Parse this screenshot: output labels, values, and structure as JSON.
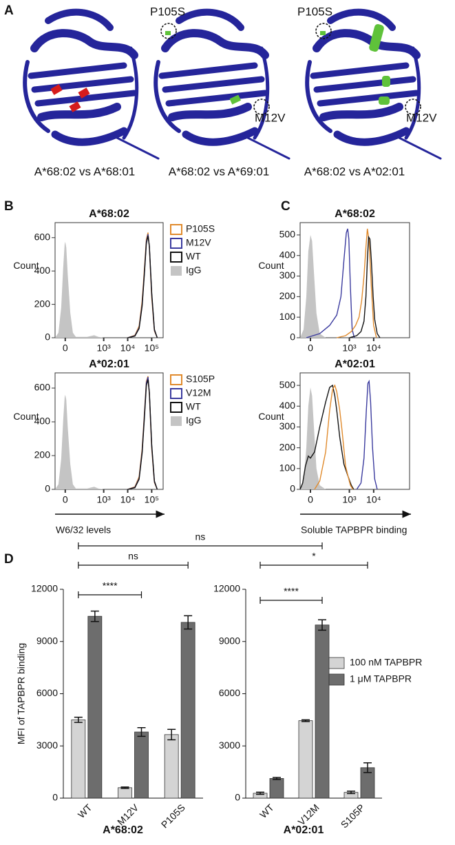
{
  "panel_labels": [
    "A",
    "B",
    "C",
    "D"
  ],
  "structures": {
    "captions": [
      "A*68:02 vs A*68:01",
      "A*68:02 vs A*69:01",
      "A*68:02 vs A*02:01"
    ],
    "mutation_labels": [
      "P105S",
      "M12V",
      "P105S",
      "M12V"
    ]
  },
  "comparison_label": "ns",
  "chart_data": [
    {
      "type": "histogram_overlay",
      "title": "A*68:02",
      "ylabel": "Count",
      "xscale": "biexponential",
      "linear_width": 50,
      "xlim": [
        -57,
        300000
      ],
      "ylim": [
        0,
        690
      ],
      "xticks": [
        0,
        {
          "value": 1000,
          "label": "10³"
        },
        {
          "value": 10000,
          "label": "10⁴"
        },
        {
          "value": 100000,
          "label": "10⁵"
        }
      ],
      "yticks": [
        0,
        200,
        400,
        600
      ],
      "series": [
        {
          "name": "P105S",
          "color": "#e08a2c",
          "x": [
            10000,
            20000,
            30000,
            40000,
            50000,
            60000,
            70000,
            80000,
            100000,
            130000,
            170000
          ],
          "values": [
            0,
            15,
            70,
            220,
            420,
            590,
            630,
            540,
            240,
            40,
            0
          ]
        },
        {
          "name": "M12V",
          "color": "#3a3a9e",
          "x": [
            10000,
            20000,
            30000,
            40000,
            50000,
            60000,
            70000,
            80000,
            100000,
            130000,
            170000
          ],
          "values": [
            0,
            12,
            60,
            200,
            400,
            575,
            620,
            545,
            260,
            45,
            0
          ]
        },
        {
          "name": "WT",
          "color": "#111111",
          "x": [
            10000,
            20000,
            30000,
            40000,
            50000,
            60000,
            70000,
            80000,
            100000,
            130000,
            170000
          ],
          "values": [
            0,
            10,
            55,
            190,
            390,
            565,
            610,
            550,
            270,
            50,
            0
          ]
        },
        {
          "name": "IgG",
          "color": "#c4c4c4",
          "filled": true,
          "x": [
            -57,
            -35,
            -20,
            -10,
            -3,
            0,
            5,
            12,
            25,
            40,
            60,
            200,
            400,
            600,
            1000
          ],
          "values": [
            0,
            30,
            180,
            420,
            560,
            575,
            540,
            380,
            150,
            30,
            5,
            5,
            15,
            5,
            0
          ]
        }
      ]
    },
    {
      "type": "histogram_overlay",
      "title": "A*02:01",
      "ylabel": "Count",
      "xlabel": "W6/32 levels",
      "xscale": "biexponential",
      "linear_width": 50,
      "xlim": [
        -57,
        300000
      ],
      "ylim": [
        0,
        690
      ],
      "xticks": [
        0,
        {
          "value": 1000,
          "label": "10³"
        },
        {
          "value": 10000,
          "label": "10⁴"
        },
        {
          "value": 100000,
          "label": "10⁵"
        }
      ],
      "yticks": [
        0,
        200,
        400,
        600
      ],
      "series": [
        {
          "name": "S105P",
          "color": "#e08a2c",
          "x": [
            10000,
            20000,
            30000,
            40000,
            50000,
            60000,
            70000,
            80000,
            100000,
            130000,
            170000
          ],
          "values": [
            0,
            15,
            75,
            240,
            460,
            640,
            670,
            560,
            240,
            40,
            0
          ]
        },
        {
          "name": "V12M",
          "color": "#3a3a9e",
          "x": [
            10000,
            20000,
            30000,
            40000,
            50000,
            60000,
            70000,
            80000,
            100000,
            130000,
            170000
          ],
          "values": [
            0,
            12,
            65,
            225,
            445,
            630,
            665,
            570,
            255,
            45,
            0
          ]
        },
        {
          "name": "WT",
          "color": "#111111",
          "x": [
            10000,
            20000,
            30000,
            40000,
            50000,
            60000,
            70000,
            80000,
            100000,
            130000,
            170000
          ],
          "values": [
            0,
            10,
            60,
            215,
            430,
            615,
            650,
            575,
            265,
            50,
            0
          ]
        },
        {
          "name": "IgG",
          "color": "#c4c4c4",
          "filled": true,
          "x": [
            -57,
            -35,
            -20,
            -10,
            -3,
            0,
            5,
            12,
            25,
            40,
            60,
            200,
            400,
            600,
            1000
          ],
          "values": [
            0,
            30,
            180,
            410,
            545,
            560,
            530,
            370,
            150,
            30,
            5,
            5,
            15,
            5,
            0
          ]
        }
      ]
    },
    {
      "type": "histogram_overlay",
      "title": "A*68:02",
      "ylabel": "Count",
      "xscale": "biexponential",
      "linear_width": 50,
      "xlim": [
        -57,
        300000
      ],
      "ylim": [
        0,
        560
      ],
      "xticks": [
        0,
        {
          "value": 1000,
          "label": "10³"
        },
        {
          "value": 10000,
          "label": "10⁴"
        }
      ],
      "yticks": [
        0,
        100,
        200,
        300,
        400,
        500
      ],
      "series": [
        {
          "color": "#c4c4c4",
          "filled": true,
          "x": [
            -57,
            -35,
            -20,
            -10,
            0,
            8,
            18,
            30,
            50,
            100
          ],
          "values": [
            0,
            40,
            200,
            420,
            500,
            470,
            300,
            120,
            20,
            0
          ]
        },
        {
          "color": "#3a3a9e",
          "x": [
            -20,
            50,
            150,
            300,
            450,
            600,
            750,
            850,
            950,
            1100,
            1300,
            1600
          ],
          "values": [
            0,
            20,
            60,
            110,
            200,
            380,
            510,
            530,
            480,
            250,
            40,
            0
          ]
        },
        {
          "color": "#e08a2c",
          "x": [
            300,
            700,
            1200,
            1800,
            2500,
            3200,
            4000,
            4800,
            5500,
            6500,
            8000,
            10000,
            13000
          ],
          "values": [
            0,
            10,
            30,
            60,
            100,
            180,
            300,
            440,
            530,
            470,
            250,
            60,
            0
          ]
        },
        {
          "color": "#111111",
          "x": [
            1000,
            2000,
            3000,
            4000,
            4800,
            5500,
            6200,
            7000,
            8000,
            9500,
            11000,
            14000,
            18000
          ],
          "values": [
            0,
            10,
            30,
            80,
            200,
            380,
            490,
            480,
            380,
            200,
            90,
            20,
            0
          ]
        }
      ]
    },
    {
      "type": "histogram_overlay",
      "title": "A*02:01",
      "ylabel": "Count",
      "xlabel": "Soluble TAPBPR binding",
      "xscale": "biexponential",
      "linear_width": 50,
      "xlim": [
        -57,
        300000
      ],
      "ylim": [
        0,
        560
      ],
      "xticks": [
        0,
        {
          "value": 1000,
          "label": "10³"
        },
        {
          "value": 10000,
          "label": "10⁴"
        }
      ],
      "yticks": [
        0,
        100,
        200,
        300,
        400,
        500
      ],
      "series": [
        {
          "color": "#c4c4c4",
          "filled": true,
          "x": [
            -57,
            -35,
            -20,
            -10,
            0,
            8,
            18,
            30,
            50,
            100
          ],
          "values": [
            0,
            40,
            200,
            400,
            490,
            450,
            280,
            100,
            20,
            0
          ]
        },
        {
          "color": "#111111",
          "x": [
            -57,
            -40,
            -25,
            -10,
            0,
            20,
            50,
            100,
            150,
            200,
            250,
            300,
            400,
            600,
            900,
            1200,
            1500
          ],
          "values": [
            0,
            30,
            110,
            160,
            150,
            180,
            300,
            420,
            490,
            500,
            450,
            380,
            250,
            120,
            60,
            20,
            0
          ]
        },
        {
          "color": "#e08a2c",
          "x": [
            20,
            50,
            100,
            150,
            200,
            250,
            300,
            400,
            500,
            700,
            900,
            1100,
            1400
          ],
          "values": [
            0,
            40,
            180,
            380,
            480,
            500,
            470,
            380,
            280,
            110,
            60,
            20,
            0
          ]
        },
        {
          "color": "#3a3a9e",
          "x": [
            2000,
            3000,
            4000,
            5000,
            5800,
            6500,
            7500,
            9000,
            11000,
            14000
          ],
          "values": [
            0,
            30,
            150,
            380,
            510,
            520,
            420,
            200,
            50,
            0
          ]
        }
      ]
    },
    {
      "type": "bar",
      "ylabel": "MFI of TAPBPR binding",
      "xlabel": "A*68:02",
      "categories": [
        "WT",
        "M12V",
        "P105S"
      ],
      "ylim": [
        0,
        12000
      ],
      "yticks": [
        0,
        3000,
        6000,
        9000,
        12000
      ],
      "series": [
        {
          "color": "#d4d4d4",
          "values": [
            4500,
            600,
            3650
          ],
          "errors": [
            150,
            40,
            300
          ]
        },
        {
          "color": "#6d6d6d",
          "values": [
            10450,
            3800,
            10100
          ],
          "errors": [
            300,
            250,
            380
          ]
        }
      ],
      "annotations": [
        "****",
        "ns"
      ]
    },
    {
      "type": "bar",
      "xlabel": "A*02:01",
      "categories": [
        "WT",
        "V12M",
        "S105P"
      ],
      "ylim": [
        0,
        12000
      ],
      "yticks": [
        0,
        3000,
        6000,
        9000,
        12000
      ],
      "series": [
        {
          "name": "100 nM TAPBPR",
          "color": "#d4d4d4",
          "values": [
            280,
            4450,
            330
          ],
          "errors": [
            60,
            50,
            70
          ]
        },
        {
          "name": "1 μM TAPBPR",
          "color": "#6d6d6d",
          "values": [
            1130,
            9950,
            1750
          ],
          "errors": [
            60,
            300,
            280
          ]
        }
      ],
      "annotations": [
        "****",
        "*"
      ]
    }
  ]
}
